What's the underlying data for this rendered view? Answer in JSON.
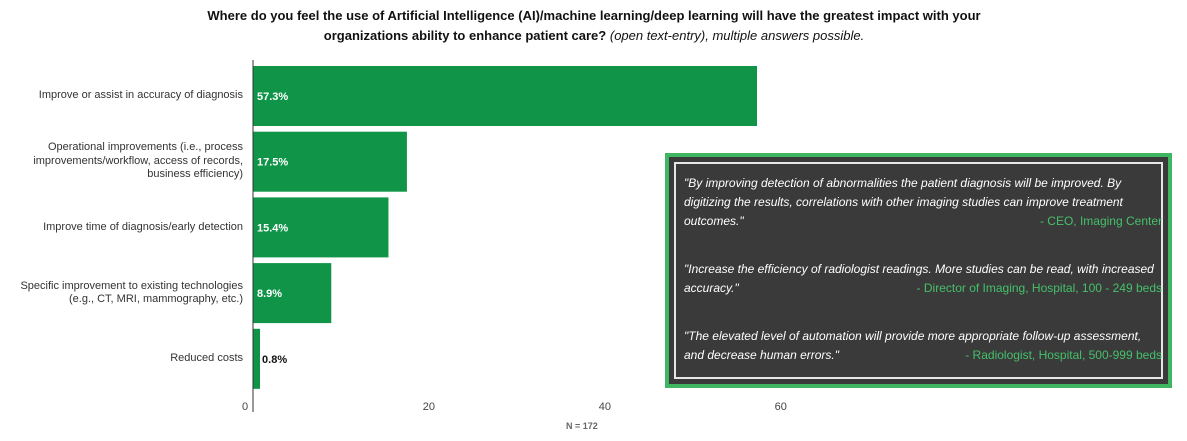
{
  "title": {
    "main": "Where do you feel the use of Artificial Intelligence (AI)/machine learning/deep learning will have the greatest impact with your organizations ability to enhance patient care?",
    "suffix": "(open text-entry), multiple answers possible."
  },
  "chart_data": {
    "type": "bar",
    "orientation": "horizontal",
    "categories": [
      "Improve or assist in accuracy of diagnosis",
      "Operational improvements (i.e., process improvements/workflow, access of records, business efficiency)",
      "Improve time of diagnosis/early detection",
      "Specific improvement to existing technologies (e.g., CT, MRI, mammography, etc.)",
      "Reduced costs"
    ],
    "category_lines": [
      [
        "Improve or assist in accuracy of diagnosis"
      ],
      [
        "Operational improvements (i.e., process",
        "improvements/workflow, access of records,",
        "business efficiency)"
      ],
      [
        "Improve time of diagnosis/early detection"
      ],
      [
        "Specific improvement to existing technologies",
        "(e.g., CT, MRI, mammography, etc.)"
      ],
      [
        "Reduced costs"
      ]
    ],
    "values": [
      57.3,
      17.5,
      15.4,
      8.9,
      0.8
    ],
    "data_labels": [
      "57.3%",
      "17.5%",
      "15.4%",
      "8.9%",
      "0.8%"
    ],
    "xlim": [
      0,
      60
    ],
    "x_ticks": [
      0,
      20,
      40,
      60
    ],
    "bar_color": "#0f9448",
    "label_color_inside": "#ffffff",
    "label_color_outside": "#111111",
    "grid": false
  },
  "note": "N = 172",
  "quotes": [
    {
      "text": "\"By improving detection of abnormalities the patient diagnosis will be improved. By digitizing the results, correlations with other imaging studies can improve treatment outcomes.\"",
      "attribution": "- CEO, Imaging Center"
    },
    {
      "text": "\"Increase the efficiency of radiologist readings. More studies can be read, with increased accuracy.\"",
      "attribution": "- Director of Imaging,  Hospital, 100 - 249 beds"
    },
    {
      "text": "\"The elevated level of automation will provide more appropriate follow-up assessment, and decrease human errors.\"",
      "attribution": "- Radiologist, Hospital, 500-999 beds"
    }
  ],
  "colors": {
    "quote_bg": "#3a3a3a",
    "quote_border": "#3fb762",
    "attribution": "#45c06a"
  }
}
